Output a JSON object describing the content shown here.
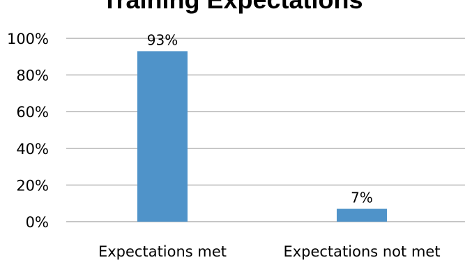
{
  "chart_data": {
    "type": "bar",
    "title": "Training Expectations",
    "categories": [
      "Expectations met",
      "Expectations not met"
    ],
    "series": [
      {
        "values": [
          93,
          7
        ],
        "data_labels": [
          "93%",
          "7%"
        ]
      }
    ],
    "y_ticks": [
      "0%",
      "20%",
      "40%",
      "60%",
      "80%",
      "100%"
    ],
    "ylim": [
      0,
      100
    ],
    "grid": true,
    "legend": "none",
    "colors": {
      "bar": "#4f93c9",
      "grid": "#8c8c8c",
      "text": "#000000"
    }
  }
}
